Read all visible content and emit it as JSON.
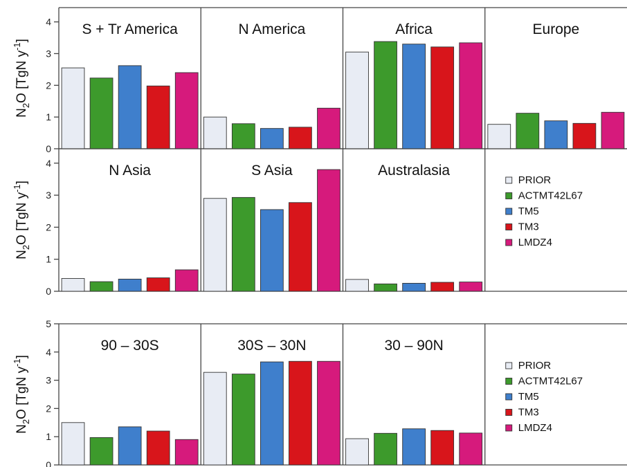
{
  "colors": {
    "PRIOR": "#e8ecf4",
    "ACTMT42L67": "#3d9a2c",
    "TM5": "#3f7fcc",
    "TM3": "#d8151b",
    "LMDZ4": "#d61a7c"
  },
  "chart_data": [
    {
      "type": "bar",
      "ylabel": "N2O [TgN y-1]",
      "ylim": [
        0,
        4
      ],
      "yticks": [
        0,
        1,
        2,
        3,
        4
      ],
      "series_names": [
        "PRIOR",
        "ACTMT42L67",
        "TM5",
        "TM3",
        "LMDZ4"
      ],
      "panels": [
        {
          "title": "S + Tr America",
          "values": [
            2.55,
            2.23,
            2.62,
            1.98,
            2.4
          ]
        },
        {
          "title": "N America",
          "values": [
            1.0,
            0.79,
            0.64,
            0.68,
            1.28
          ]
        },
        {
          "title": "Africa",
          "values": [
            3.05,
            3.38,
            3.3,
            3.21,
            3.34
          ]
        },
        {
          "title": "Europe",
          "values": [
            0.77,
            1.12,
            0.88,
            0.8,
            1.15
          ]
        }
      ]
    },
    {
      "type": "bar",
      "ylabel": "N2O [TgN y-1]",
      "ylim": [
        0,
        4
      ],
      "yticks": [
        0,
        1,
        2,
        3,
        4
      ],
      "series_names": [
        "PRIOR",
        "ACTMT42L67",
        "TM5",
        "TM3",
        "LMDZ4"
      ],
      "panels": [
        {
          "title": "N Asia",
          "values": [
            0.4,
            0.3,
            0.38,
            0.42,
            0.67
          ]
        },
        {
          "title": "S Asia",
          "values": [
            2.9,
            2.93,
            2.55,
            2.77,
            3.8
          ]
        },
        {
          "title": "Australasia",
          "values": [
            0.37,
            0.23,
            0.25,
            0.28,
            0.29
          ]
        }
      ],
      "legend": [
        "PRIOR",
        "ACTMT42L67",
        "TM5",
        "TM3",
        "LMDZ4"
      ]
    },
    {
      "type": "bar",
      "ylabel": "N2O [TgN y-1]",
      "ylim": [
        0,
        5
      ],
      "yticks": [
        0,
        1,
        2,
        3,
        4,
        5
      ],
      "series_names": [
        "PRIOR",
        "ACTMT42L67",
        "TM5",
        "TM3",
        "LMDZ4"
      ],
      "panels": [
        {
          "title": "90 – 30S",
          "values": [
            1.5,
            0.97,
            1.35,
            1.2,
            0.9
          ]
        },
        {
          "title": "30S – 30N",
          "values": [
            3.28,
            3.22,
            3.65,
            3.67,
            3.67
          ]
        },
        {
          "title": "30 – 90N",
          "values": [
            0.93,
            1.12,
            1.28,
            1.22,
            1.13
          ]
        }
      ],
      "legend": [
        "PRIOR",
        "ACTMT42L67",
        "TM5",
        "TM3",
        "LMDZ4"
      ]
    }
  ]
}
